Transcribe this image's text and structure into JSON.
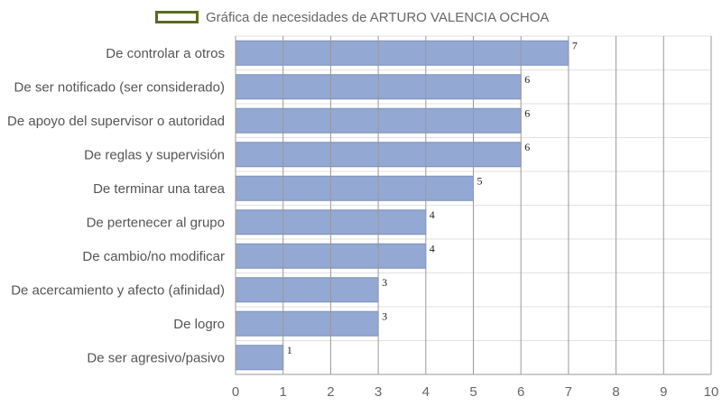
{
  "chart_data": {
    "type": "bar",
    "orientation": "horizontal",
    "legend": {
      "label": "Gráfica de necesidades de ARTURO VALENCIA OCHOA",
      "placement": "top-center"
    },
    "categories": [
      "De controlar a otros",
      "De ser notificado (ser considerado)",
      "De apoyo del supervisor o autoridad",
      "De reglas y supervisión",
      "De terminar una tarea",
      "De pertenecer al grupo",
      "De cambio/no modificar",
      "De acercamiento y afecto (afinidad)",
      "De logro",
      "De ser agresivo/pasivo"
    ],
    "values": [
      7,
      6,
      6,
      6,
      5,
      4,
      4,
      3,
      3,
      1
    ],
    "xlim": [
      0,
      10
    ],
    "xticks": [
      0,
      1,
      2,
      3,
      4,
      5,
      6,
      7,
      8,
      9,
      10
    ],
    "grid": true,
    "colors": {
      "bar_fill": "#94a8d4",
      "bar_stroke": "#7d8fb8",
      "legend_border": "#5a6b1f",
      "grid": "#999999",
      "row_line": "#e2e2e2"
    }
  }
}
